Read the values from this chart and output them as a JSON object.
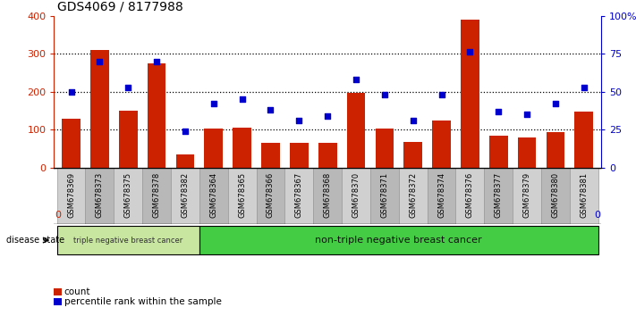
{
  "title": "GDS4069 / 8177988",
  "samples": [
    "GSM678369",
    "GSM678373",
    "GSM678375",
    "GSM678378",
    "GSM678382",
    "GSM678364",
    "GSM678365",
    "GSM678366",
    "GSM678367",
    "GSM678368",
    "GSM678370",
    "GSM678371",
    "GSM678372",
    "GSM678374",
    "GSM678376",
    "GSM678377",
    "GSM678379",
    "GSM678380",
    "GSM678381"
  ],
  "counts": [
    128,
    310,
    150,
    275,
    35,
    102,
    105,
    65,
    65,
    65,
    198,
    103,
    68,
    125,
    390,
    83,
    80,
    93,
    147
  ],
  "percentiles": [
    50,
    70,
    53,
    70,
    24,
    42,
    45,
    38,
    31,
    34,
    58,
    48,
    31,
    48,
    76,
    37,
    35,
    42,
    53
  ],
  "group1_count": 5,
  "group2_count": 14,
  "group1_label": "triple negative breast cancer",
  "group2_label": "non-triple negative breast cancer",
  "bar_color": "#cc2200",
  "scatter_color": "#0000cc",
  "group1_bg": "#c8e6a0",
  "group2_bg": "#44cc44",
  "tick_bg_odd": "#d0d0d0",
  "tick_bg_even": "#b8b8b8",
  "left_axis_color": "#cc2200",
  "right_axis_color": "#0000cc",
  "ylim_left": [
    0,
    400
  ],
  "ylim_right": [
    0,
    100
  ],
  "yticks_left": [
    0,
    100,
    200,
    300,
    400
  ],
  "yticks_right": [
    0,
    25,
    50,
    75,
    100
  ],
  "yticklabels_right": [
    "0",
    "25",
    "50",
    "75",
    "100%"
  ],
  "disease_state_label": "disease state",
  "legend_count_label": "count",
  "legend_percentile_label": "percentile rank within the sample"
}
